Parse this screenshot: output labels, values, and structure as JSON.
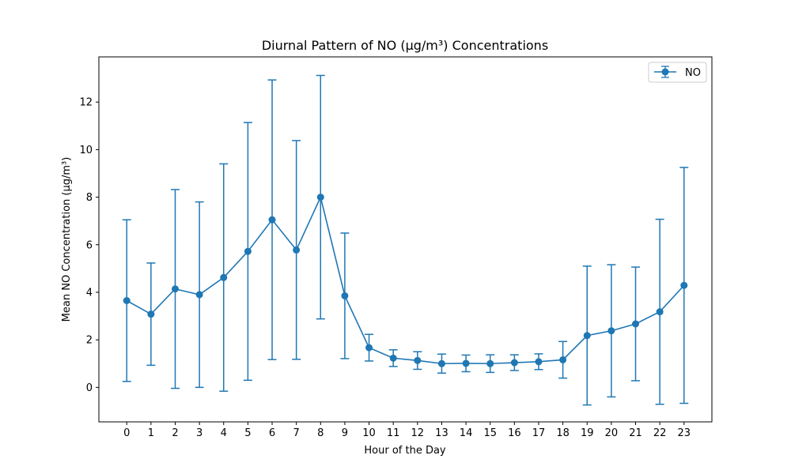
{
  "chart_data": {
    "type": "line",
    "title": "Diurnal Pattern of NO (µg/m³) Concentrations",
    "xlabel": "Hour of the Day",
    "ylabel": "Mean NO Concentration (µg/m³)",
    "x": [
      0,
      1,
      2,
      3,
      4,
      5,
      6,
      7,
      8,
      9,
      10,
      11,
      12,
      13,
      14,
      15,
      16,
      17,
      18,
      19,
      20,
      21,
      22,
      23
    ],
    "xticks": [
      "0",
      "1",
      "2",
      "3",
      "4",
      "5",
      "6",
      "7",
      "8",
      "9",
      "10",
      "11",
      "12",
      "13",
      "14",
      "15",
      "16",
      "17",
      "18",
      "19",
      "20",
      "21",
      "22",
      "23"
    ],
    "xlim": [
      -1.15,
      24.15
    ],
    "ylim": [
      -1.45,
      13.9
    ],
    "yticks": [
      0,
      2,
      4,
      6,
      8,
      10,
      12
    ],
    "grid": false,
    "legend_position": "top-right",
    "series": [
      {
        "name": "NO",
        "color": "#1f77b4",
        "values": [
          3.65,
          3.08,
          4.14,
          3.9,
          4.62,
          5.72,
          7.05,
          5.78,
          8.0,
          3.85,
          1.67,
          1.23,
          1.13,
          1.0,
          1.01,
          1.0,
          1.04,
          1.08,
          1.16,
          2.18,
          2.38,
          2.67,
          3.18,
          4.29
        ],
        "error": [
          3.4,
          2.15,
          4.18,
          3.9,
          4.78,
          5.42,
          5.88,
          4.6,
          5.12,
          2.64,
          0.56,
          0.35,
          0.37,
          0.4,
          0.35,
          0.37,
          0.33,
          0.33,
          0.77,
          2.92,
          2.78,
          2.39,
          3.89,
          4.96
        ]
      }
    ]
  }
}
